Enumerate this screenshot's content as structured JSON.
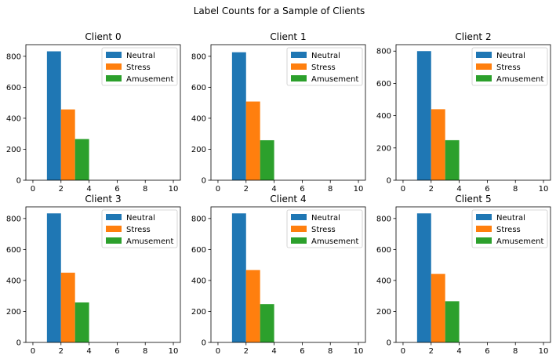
{
  "figure_title": "Label Counts for a Sample of Clients",
  "chart_data": [
    {
      "type": "bar",
      "title": "Client 0",
      "xlim": [
        -0.5,
        10.5
      ],
      "ylim": [
        0,
        875
      ],
      "xticks": [
        "0",
        "2",
        "4",
        "6",
        "8",
        "10"
      ],
      "yticks": [
        "0",
        "200",
        "400",
        "600",
        "800"
      ],
      "legend_position": "upper-right",
      "series": [
        {
          "name": "Neutral",
          "x_start": 1,
          "x_end": 2,
          "value": 832,
          "color": "#1f77b4"
        },
        {
          "name": "Stress",
          "x_start": 2,
          "x_end": 3,
          "value": 457,
          "color": "#ff7f0e"
        },
        {
          "name": "Amusement",
          "x_start": 3,
          "x_end": 4,
          "value": 266,
          "color": "#2ca02c"
        }
      ]
    },
    {
      "type": "bar",
      "title": "Client 1",
      "xlim": [
        -0.5,
        10.5
      ],
      "ylim": [
        0,
        875
      ],
      "xticks": [
        "0",
        "2",
        "4",
        "6",
        "8",
        "10"
      ],
      "yticks": [
        "0",
        "200",
        "400",
        "600",
        "800"
      ],
      "legend_position": "upper-right",
      "series": [
        {
          "name": "Neutral",
          "x_start": 1,
          "x_end": 2,
          "value": 826,
          "color": "#1f77b4"
        },
        {
          "name": "Stress",
          "x_start": 2,
          "x_end": 3,
          "value": 508,
          "color": "#ff7f0e"
        },
        {
          "name": "Amusement",
          "x_start": 3,
          "x_end": 4,
          "value": 258,
          "color": "#2ca02c"
        }
      ]
    },
    {
      "type": "bar",
      "title": "Client 2",
      "xlim": [
        -0.5,
        10.5
      ],
      "ylim": [
        0,
        840
      ],
      "xticks": [
        "0",
        "2",
        "4",
        "6",
        "8",
        "10"
      ],
      "yticks": [
        "0",
        "200",
        "400",
        "600",
        "800"
      ],
      "legend_position": "upper-right",
      "series": [
        {
          "name": "Neutral",
          "x_start": 1,
          "x_end": 2,
          "value": 800,
          "color": "#1f77b4"
        },
        {
          "name": "Stress",
          "x_start": 2,
          "x_end": 3,
          "value": 440,
          "color": "#ff7f0e"
        },
        {
          "name": "Amusement",
          "x_start": 3,
          "x_end": 4,
          "value": 248,
          "color": "#2ca02c"
        }
      ]
    },
    {
      "type": "bar",
      "title": "Client 3",
      "xlim": [
        -0.5,
        10.5
      ],
      "ylim": [
        0,
        875
      ],
      "xticks": [
        "0",
        "2",
        "4",
        "6",
        "8",
        "10"
      ],
      "yticks": [
        "0",
        "200",
        "400",
        "600",
        "800"
      ],
      "legend_position": "upper-right",
      "series": [
        {
          "name": "Neutral",
          "x_start": 1,
          "x_end": 2,
          "value": 833,
          "color": "#1f77b4"
        },
        {
          "name": "Stress",
          "x_start": 2,
          "x_end": 3,
          "value": 450,
          "color": "#ff7f0e"
        },
        {
          "name": "Amusement",
          "x_start": 3,
          "x_end": 4,
          "value": 258,
          "color": "#2ca02c"
        }
      ]
    },
    {
      "type": "bar",
      "title": "Client 4",
      "xlim": [
        -0.5,
        10.5
      ],
      "ylim": [
        0,
        875
      ],
      "xticks": [
        "0",
        "2",
        "4",
        "6",
        "8",
        "10"
      ],
      "yticks": [
        "0",
        "200",
        "400",
        "600",
        "800"
      ],
      "legend_position": "upper-right",
      "series": [
        {
          "name": "Neutral",
          "x_start": 1,
          "x_end": 2,
          "value": 833,
          "color": "#1f77b4"
        },
        {
          "name": "Stress",
          "x_start": 2,
          "x_end": 3,
          "value": 467,
          "color": "#ff7f0e"
        },
        {
          "name": "Amusement",
          "x_start": 3,
          "x_end": 4,
          "value": 247,
          "color": "#2ca02c"
        }
      ]
    },
    {
      "type": "bar",
      "title": "Client 5",
      "xlim": [
        -0.5,
        10.5
      ],
      "ylim": [
        0,
        875
      ],
      "xticks": [
        "0",
        "2",
        "4",
        "6",
        "8",
        "10"
      ],
      "yticks": [
        "0",
        "200",
        "400",
        "600",
        "800"
      ],
      "legend_position": "upper-right",
      "series": [
        {
          "name": "Neutral",
          "x_start": 1,
          "x_end": 2,
          "value": 833,
          "color": "#1f77b4"
        },
        {
          "name": "Stress",
          "x_start": 2,
          "x_end": 3,
          "value": 442,
          "color": "#ff7f0e"
        },
        {
          "name": "Amusement",
          "x_start": 3,
          "x_end": 4,
          "value": 266,
          "color": "#2ca02c"
        }
      ]
    }
  ]
}
